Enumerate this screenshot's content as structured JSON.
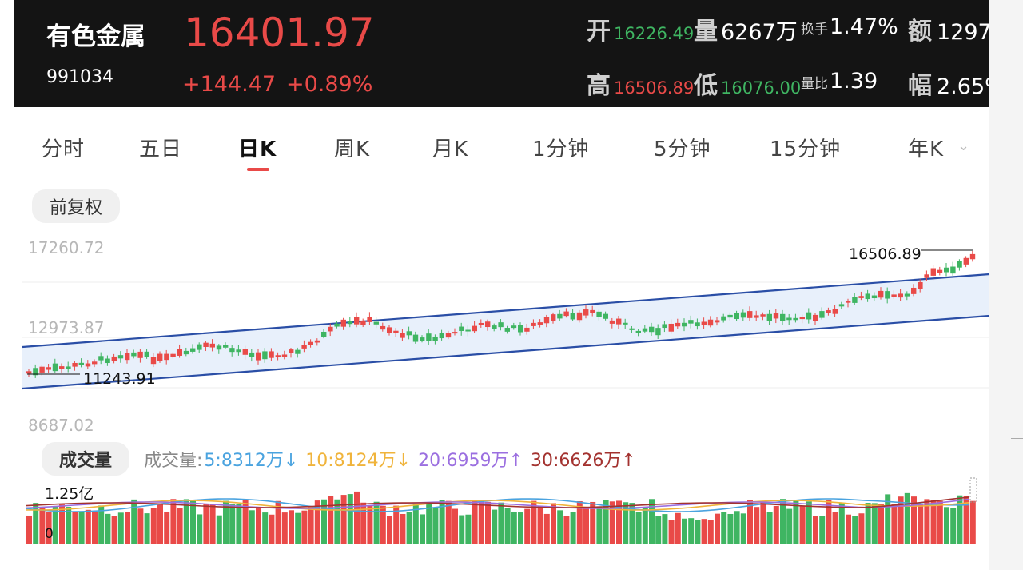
{
  "header": {
    "name": "有色金属",
    "code": "991034",
    "price": "16401.97",
    "change": "+144.47",
    "change_pct": "+0.89%",
    "open_label": "开",
    "open": "16226.49",
    "volume_label": "量",
    "volume": "6267万",
    "turnover_label": "换手",
    "turnover": "1.47%",
    "amount_label": "额",
    "amount": "1297",
    "high_label": "高",
    "high": "16506.89",
    "low_label": "低",
    "low": "16076.00",
    "vol_ratio_label": "量比",
    "vol_ratio": "1.39",
    "amp_label": "幅",
    "amp": "2.65%"
  },
  "tabs": {
    "items": [
      "分时",
      "五日",
      "日K",
      "周K",
      "月K",
      "1分钟",
      "5分钟",
      "15分钟",
      "年K"
    ],
    "active": "日K"
  },
  "adjust_label": "前复权",
  "chart": {
    "y_top": "17260.72",
    "y_mid": "12973.87",
    "y_bottom": "8687.02",
    "max_label": "16506.89",
    "min_label": "11243.91"
  },
  "volume": {
    "title": "成交量",
    "legend_label": "成交量:",
    "ma5": "5:8312万↓",
    "ma10": "10:8124万↓",
    "ma20": "20:6959万↑",
    "ma30": "30:6626万↑",
    "y_top": "1.25亿",
    "y_zero": "0"
  },
  "colors": {
    "up": "#e94a48",
    "down": "#3fb562",
    "channel": "#2a4ea6",
    "ma5": "#4aa3df",
    "ma10": "#f0b43c",
    "ma20": "#9b6fe0",
    "ma30": "#a3322f"
  }
}
